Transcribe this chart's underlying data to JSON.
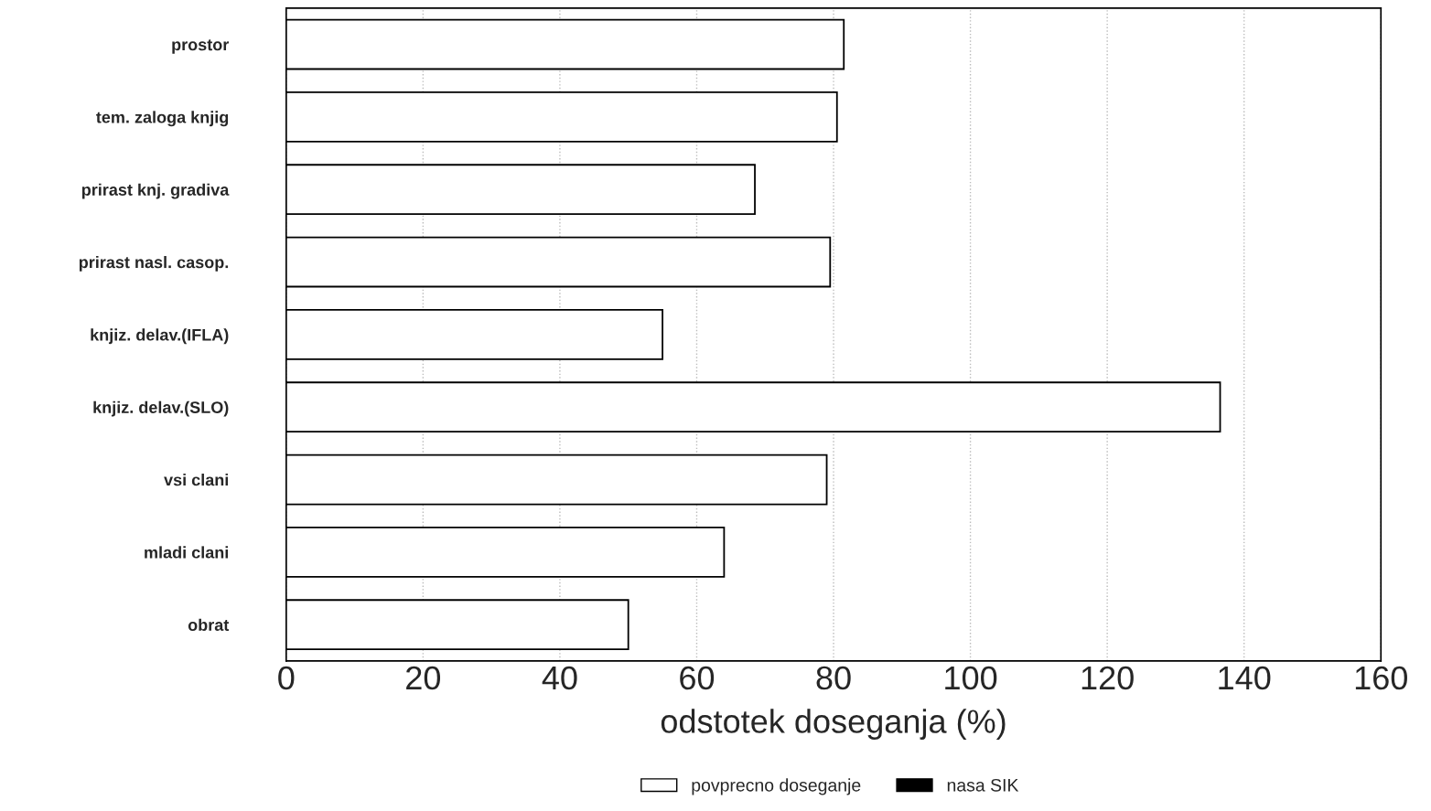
{
  "chart_data": {
    "type": "bar",
    "orientation": "horizontal",
    "xlabel": "odstotek doseganja (%)",
    "categories": [
      "prostor",
      "tem. zaloga knjig",
      "prirast knj. gradiva",
      "prirast nasl. casop.",
      "knjiz. delav.(IFLA)",
      "knjiz. delav.(SLO)",
      "vsi clani",
      "mladi clani",
      "obrat"
    ],
    "series": [
      {
        "name": "povprecno doseganje",
        "color": "#ffffff",
        "values": [
          81.5,
          80.5,
          68.5,
          79.5,
          55,
          136.5,
          79,
          64,
          50
        ]
      },
      {
        "name": "nasa SIK",
        "color": "#000000",
        "values": [
          null,
          null,
          null,
          null,
          null,
          null,
          null,
          null,
          null
        ]
      }
    ],
    "xlim": [
      0,
      160
    ],
    "xticks": [
      0,
      20,
      40,
      60,
      80,
      100,
      120,
      140,
      160
    ],
    "grid": "x",
    "legend": "bottom"
  }
}
